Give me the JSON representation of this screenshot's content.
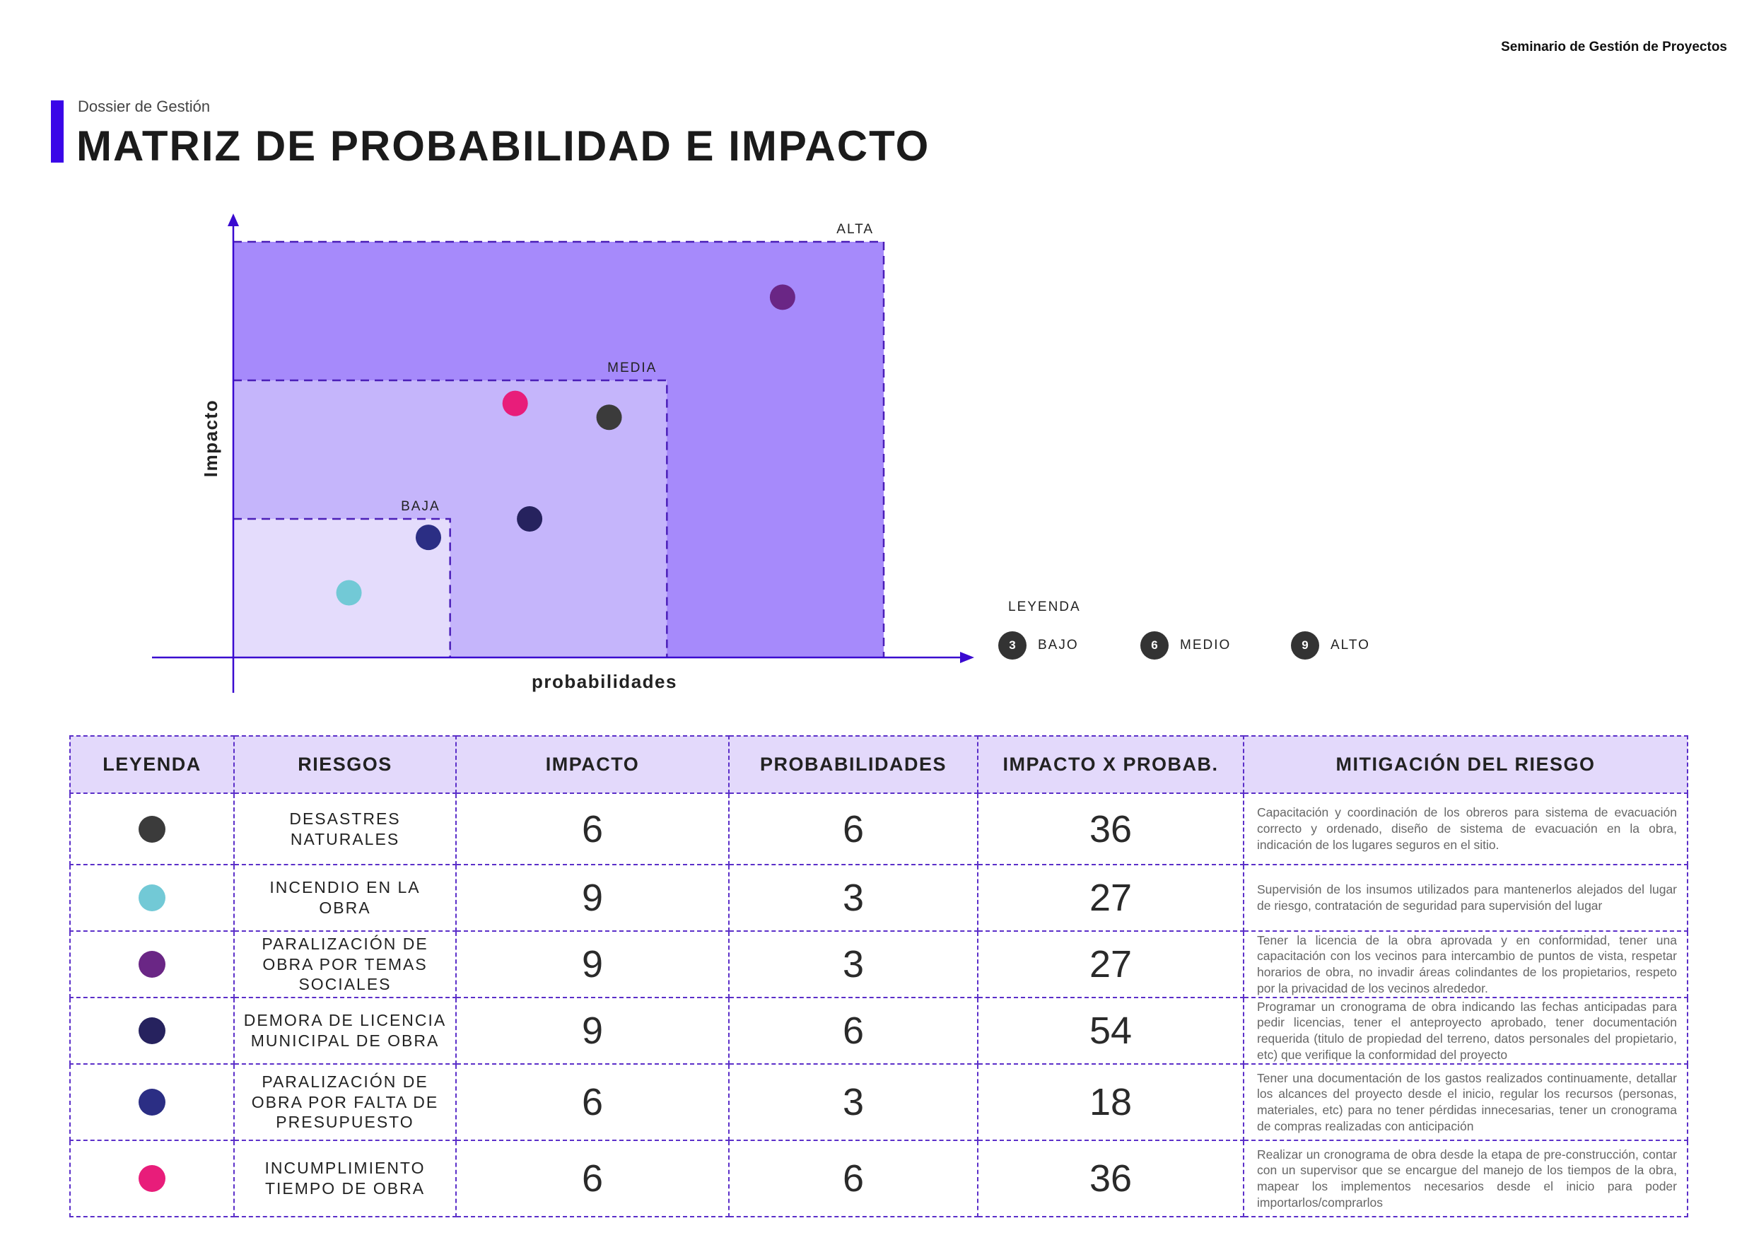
{
  "header": {
    "course": "Seminario de Gestión de Proyectos",
    "subtitle": "Dossier de Gestión",
    "title": "MATRIZ DE PROBABILIDAD E IMPACTO"
  },
  "chart_data": {
    "type": "scatter",
    "xlabel": "probabilidades",
    "ylabel": "Impacto",
    "xlim": [
      0,
      9
    ],
    "ylim": [
      0,
      9
    ],
    "zones": [
      {
        "label": "ALTA",
        "x_max": 9,
        "y_max": 9,
        "color": "#a68afb"
      },
      {
        "label": "MEDIA",
        "x_max": 6,
        "y_max": 6,
        "color": "#c5b5fb"
      },
      {
        "label": "BAJA",
        "x_max": 3,
        "y_max": 3,
        "color": "#e4dcfc"
      }
    ],
    "points": [
      {
        "x": 7.6,
        "y": 7.8,
        "color": "#6a2685"
      },
      {
        "x": 3.9,
        "y": 5.5,
        "color": "#e81d7a"
      },
      {
        "x": 5.2,
        "y": 5.2,
        "color": "#3b3b3b"
      },
      {
        "x": 2.7,
        "y": 2.6,
        "color": "#2b2e84"
      },
      {
        "x": 4.1,
        "y": 3.0,
        "color": "#26225e"
      },
      {
        "x": 1.6,
        "y": 1.4,
        "color": "#72c9d6"
      }
    ]
  },
  "legend": {
    "label": "LEYENDA",
    "items": [
      {
        "value": "3",
        "text": "BAJO"
      },
      {
        "value": "6",
        "text": "MEDIO"
      },
      {
        "value": "9",
        "text": "ALTO"
      }
    ]
  },
  "table": {
    "headers": [
      "LEYENDA",
      "RIESGOS",
      "IMPACTO",
      "PROBABILIDADES",
      "IMPACTO X PROBAB.",
      "MITIGACIÓN DEL RIESGO"
    ],
    "rows": [
      {
        "color": "#3b3b3b",
        "risk": "DESASTRES NATURALES",
        "impacto": "6",
        "prob": "6",
        "total": "36",
        "mitigacion": "Capacitación y coordinación de los obreros para sistema de evacuación correcto y ordenado, diseño de sistema de evacuación en la obra, indicación de los lugares seguros en el sitio."
      },
      {
        "color": "#72c9d6",
        "risk": "INCENDIO EN LA OBRA",
        "impacto": "9",
        "prob": "3",
        "total": "27",
        "mitigacion": "Supervisión de los insumos utilizados para mantenerlos alejados del lugar de riesgo, contratación de seguridad para supervisión del lugar"
      },
      {
        "color": "#6a2685",
        "risk": "PARALIZACIÓN DE OBRA POR TEMAS SOCIALES",
        "impacto": "9",
        "prob": "3",
        "total": "27",
        "mitigacion": "Tener la licencia de la obra aprovada y en conformidad, tener una capacitación con los vecinos para intercambio de puntos de vista, respetar horarios de obra, no invadir áreas colindantes de los propietarios, respeto por la privacidad de los vecinos alrededor."
      },
      {
        "color": "#26225e",
        "risk": "DEMORA DE LICENCIA MUNICIPAL DE OBRA",
        "impacto": "9",
        "prob": "6",
        "total": "54",
        "mitigacion": "Programar un cronograma de obra indicando las fechas anticipadas para pedir licencias, tener el anteproyecto aprobado, tener documentación requerida (titulo de propiedad del terreno, datos personales del propietario, etc) que verifique la conformidad del proyecto"
      },
      {
        "color": "#2b2e84",
        "risk": "PARALIZACIÓN DE OBRA POR FALTA DE PRESUPUESTO",
        "impacto": "6",
        "prob": "3",
        "total": "18",
        "mitigacion": "Tener una documentación de los gastos realizados continuamente, detallar los alcances del proyecto desde el inicio, regular los recursos (personas, materiales, etc) para no tener pérdidas innecesarias, tener un cronograma de compras realizadas con anticipación"
      },
      {
        "color": "#e81d7a",
        "risk": "INCUMPLIMIENTO TIEMPO DE OBRA",
        "impacto": "6",
        "prob": "6",
        "total": "36",
        "mitigacion": "Realizar un cronograma de obra desde la etapa de pre-construcción, contar con un supervisor que se encargue del manejo de los tiempos de la obra, mapear los implementos necesarios desde el inicio para poder importarlos/comprarlos"
      }
    ]
  }
}
